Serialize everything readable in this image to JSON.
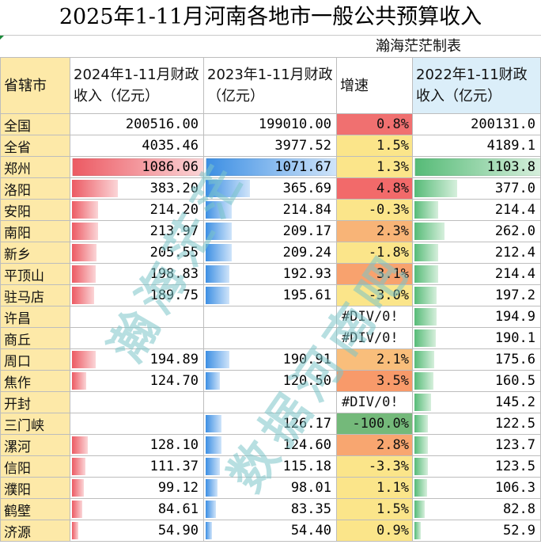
{
  "title": "2025年1-11月河南各地市一般公共预算收入",
  "subtitle": "瀚海茫茫制表",
  "headers": {
    "province": "省辖市",
    "col2024": "2024年1-11月财政收入（亿元）",
    "col2023": "2023年1-11月财政（亿元）",
    "growth": "增速",
    "col2022": "2022年1-11财政收入（亿元）"
  },
  "rows": [
    {
      "name": "全国",
      "v2024": "200516.00",
      "v2023": "199010.00",
      "growth": "0.8%",
      "v2022": "200131.0",
      "bar2024": 0,
      "bar2023": 0,
      "bar2022": 0,
      "growth_color": "#f07070"
    },
    {
      "name": "全省",
      "v2024": "4035.46",
      "v2023": "3977.52",
      "growth": "1.5%",
      "v2022": "4189.1",
      "bar2024": 0,
      "bar2023": 0,
      "bar2022": 0,
      "growth_color": "#fbe58a"
    },
    {
      "name": "郑州",
      "v2024": "1086.06",
      "v2023": "1071.67",
      "growth": "1.3%",
      "v2022": "1103.8",
      "bar2024": 1.0,
      "bar2023": 1.0,
      "bar2022": 1.0,
      "growth_color": "#fbe58a"
    },
    {
      "name": "洛阳",
      "v2024": "383.20",
      "v2023": "365.69",
      "growth": "4.8%",
      "v2022": "377.0",
      "bar2024": 0.35,
      "bar2023": 0.34,
      "bar2022": 0.34,
      "growth_color": "#f26a6a"
    },
    {
      "name": "安阳",
      "v2024": "214.20",
      "v2023": "214.84",
      "growth": "-0.3%",
      "v2022": "214.4",
      "bar2024": 0.2,
      "bar2023": 0.2,
      "bar2022": 0.19,
      "growth_color": "#fbe58a"
    },
    {
      "name": "南阳",
      "v2024": "213.97",
      "v2023": "209.17",
      "growth": "2.3%",
      "v2022": "262.0",
      "bar2024": 0.2,
      "bar2023": 0.2,
      "bar2022": 0.24,
      "growth_color": "#f8b477"
    },
    {
      "name": "新乡",
      "v2024": "205.55",
      "v2023": "209.24",
      "growth": "-1.8%",
      "v2022": "212.4",
      "bar2024": 0.19,
      "bar2023": 0.2,
      "bar2022": 0.19,
      "growth_color": "#fbe58a"
    },
    {
      "name": "平顶山",
      "v2024": "198.83",
      "v2023": "192.93",
      "growth": "3.1%",
      "v2022": "214.4",
      "bar2024": 0.18,
      "bar2023": 0.18,
      "bar2022": 0.19,
      "growth_color": "#f8a26e"
    },
    {
      "name": "驻马店",
      "v2024": "189.75",
      "v2023": "195.61",
      "growth": "-3.0%",
      "v2022": "197.2",
      "bar2024": 0.17,
      "bar2023": 0.18,
      "bar2022": 0.18,
      "growth_color": "#fbe58a"
    },
    {
      "name": "许昌",
      "v2024": "",
      "v2023": "",
      "growth": "#DIV/0!",
      "v2022": "194.9",
      "bar2024": 0,
      "bar2023": 0,
      "bar2022": 0.18,
      "growth_color": "#ffffff"
    },
    {
      "name": "商丘",
      "v2024": "",
      "v2023": "",
      "growth": "#DIV/0!",
      "v2022": "190.1",
      "bar2024": 0,
      "bar2023": 0,
      "bar2022": 0.17,
      "growth_color": "#ffffff"
    },
    {
      "name": "周口",
      "v2024": "194.89",
      "v2023": "190.91",
      "growth": "2.1%",
      "v2022": "175.6",
      "bar2024": 0.18,
      "bar2023": 0.18,
      "bar2022": 0.16,
      "growth_color": "#f9be7b"
    },
    {
      "name": "焦作",
      "v2024": "124.70",
      "v2023": "120.50",
      "growth": "3.5%",
      "v2022": "160.5",
      "bar2024": 0.11,
      "bar2023": 0.11,
      "bar2022": 0.15,
      "growth_color": "#f89a6a"
    },
    {
      "name": "开封",
      "v2024": "",
      "v2023": "",
      "growth": "#DIV/0!",
      "v2022": "145.2",
      "bar2024": 0,
      "bar2023": 0,
      "bar2022": 0.13,
      "growth_color": "#ffffff"
    },
    {
      "name": "三门峡",
      "v2024": "",
      "v2023": "126.17",
      "growth": "-100.0%",
      "v2022": "122.5",
      "bar2024": 0,
      "bar2023": 0.12,
      "bar2022": 0.11,
      "growth_color": "#74b97a"
    },
    {
      "name": "漯河",
      "v2024": "128.10",
      "v2023": "124.60",
      "growth": "2.8%",
      "v2022": "123.7",
      "bar2024": 0.12,
      "bar2023": 0.12,
      "bar2022": 0.11,
      "growth_color": "#f8a670"
    },
    {
      "name": "信阳",
      "v2024": "111.37",
      "v2023": "115.18",
      "growth": "-3.3%",
      "v2022": "123.5",
      "bar2024": 0.1,
      "bar2023": 0.11,
      "bar2022": 0.11,
      "growth_color": "#fbe58a"
    },
    {
      "name": "濮阳",
      "v2024": "99.12",
      "v2023": "98.01",
      "growth": "1.1%",
      "v2022": "106.3",
      "bar2024": 0.09,
      "bar2023": 0.09,
      "bar2022": 0.1,
      "growth_color": "#fbe58a"
    },
    {
      "name": "鹤壁",
      "v2024": "84.61",
      "v2023": "83.35",
      "growth": "1.5%",
      "v2022": "82.8",
      "bar2024": 0.08,
      "bar2023": 0.08,
      "bar2022": 0.08,
      "growth_color": "#fbe58a"
    },
    {
      "name": "济源",
      "v2024": "54.90",
      "v2023": "54.40",
      "growth": "0.9%",
      "v2022": "52.9",
      "bar2024": 0.05,
      "bar2023": 0.05,
      "bar2022": 0.05,
      "growth_color": "#fbe58a"
    }
  ],
  "watermarks": [
    "瀚海茫茫",
    "数据河南吧"
  ]
}
